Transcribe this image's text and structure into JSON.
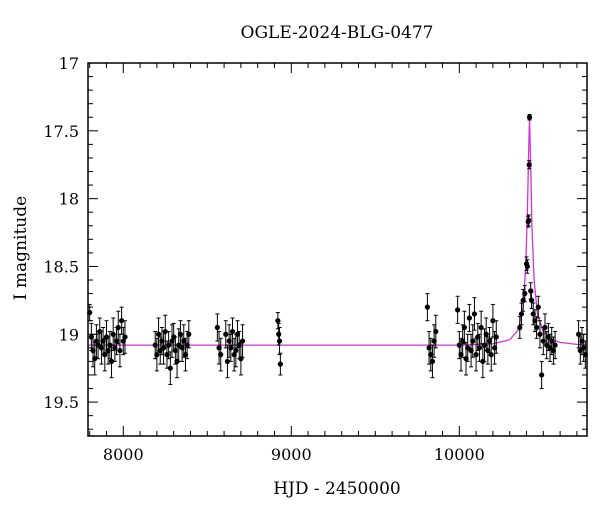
{
  "chart_data": {
    "type": "scatter",
    "title": "OGLE-2024-BLG-0477",
    "xlabel": "HJD - 2450000",
    "ylabel": "I magnitude",
    "xlim": [
      7790,
      10760
    ],
    "ylim": [
      19.75,
      17.0
    ],
    "y_inverted": true,
    "xticks": [
      8000,
      9000,
      10000
    ],
    "xtick_labels": [
      "8000",
      "9000",
      "10000"
    ],
    "yticks": [
      17,
      17.5,
      18,
      18.5,
      19,
      19.5
    ],
    "ytick_labels": [
      "17",
      "17.5",
      "18",
      "18.5",
      "19",
      "19.5"
    ],
    "grid": false,
    "colors": {
      "points": "#000000",
      "model": "#d633d6",
      "frame": "#000000"
    },
    "model": {
      "name": "model",
      "baseline": 19.08,
      "x": [
        7790,
        9000,
        10000,
        10200,
        10300,
        10350,
        10380,
        10395,
        10405,
        10412,
        10418,
        10425,
        10432,
        10445,
        10465,
        10500,
        10550,
        10600,
        10700,
        10760
      ],
      "y": [
        19.08,
        19.08,
        19.08,
        19.07,
        19.04,
        18.97,
        18.8,
        18.5,
        18.1,
        17.7,
        17.4,
        17.75,
        18.2,
        18.6,
        18.85,
        18.98,
        19.04,
        19.06,
        19.075,
        19.08
      ]
    },
    "series": [
      {
        "values": [
          {
            "x": 7800,
            "y": 18.84,
            "err": 0.06
          },
          {
            "x": 7810,
            "y": 19.02,
            "err": 0.1
          },
          {
            "x": 7820,
            "y": 19.12,
            "err": 0.12
          },
          {
            "x": 7830,
            "y": 19.18,
            "err": 0.12
          },
          {
            "x": 7840,
            "y": 19.05,
            "err": 0.12
          },
          {
            "x": 7850,
            "y": 19.08,
            "err": 0.1
          },
          {
            "x": 7860,
            "y": 18.98,
            "err": 0.1
          },
          {
            "x": 7870,
            "y": 19.1,
            "err": 0.12
          },
          {
            "x": 7880,
            "y": 19.05,
            "err": 0.1
          },
          {
            "x": 7890,
            "y": 19.15,
            "err": 0.12
          },
          {
            "x": 7900,
            "y": 19.02,
            "err": 0.12
          },
          {
            "x": 7910,
            "y": 19.12,
            "err": 0.1
          },
          {
            "x": 7920,
            "y": 19.08,
            "err": 0.1
          },
          {
            "x": 7930,
            "y": 19.2,
            "err": 0.12
          },
          {
            "x": 7940,
            "y": 19.0,
            "err": 0.12
          },
          {
            "x": 7950,
            "y": 19.1,
            "err": 0.1
          },
          {
            "x": 7960,
            "y": 19.05,
            "err": 0.1
          },
          {
            "x": 7970,
            "y": 18.95,
            "err": 0.12
          },
          {
            "x": 7980,
            "y": 19.12,
            "err": 0.12
          },
          {
            "x": 7990,
            "y": 18.9,
            "err": 0.1
          },
          {
            "x": 8000,
            "y": 19.05,
            "err": 0.1
          },
          {
            "x": 8010,
            "y": 19.02,
            "err": 0.12
          },
          {
            "x": 8190,
            "y": 19.08,
            "err": 0.1
          },
          {
            "x": 8200,
            "y": 19.15,
            "err": 0.12
          },
          {
            "x": 8210,
            "y": 19.0,
            "err": 0.12
          },
          {
            "x": 8220,
            "y": 19.12,
            "err": 0.1
          },
          {
            "x": 8230,
            "y": 19.05,
            "err": 0.1
          },
          {
            "x": 8240,
            "y": 19.1,
            "err": 0.12
          },
          {
            "x": 8250,
            "y": 18.98,
            "err": 0.12
          },
          {
            "x": 8260,
            "y": 19.15,
            "err": 0.1
          },
          {
            "x": 8270,
            "y": 19.08,
            "err": 0.1
          },
          {
            "x": 8280,
            "y": 19.25,
            "err": 0.12
          },
          {
            "x": 8290,
            "y": 19.05,
            "err": 0.12
          },
          {
            "x": 8300,
            "y": 19.02,
            "err": 0.1
          },
          {
            "x": 8310,
            "y": 19.12,
            "err": 0.1
          },
          {
            "x": 8320,
            "y": 19.2,
            "err": 0.12
          },
          {
            "x": 8330,
            "y": 19.08,
            "err": 0.12
          },
          {
            "x": 8340,
            "y": 19.0,
            "err": 0.1
          },
          {
            "x": 8350,
            "y": 19.1,
            "err": 0.1
          },
          {
            "x": 8360,
            "y": 19.05,
            "err": 0.12
          },
          {
            "x": 8370,
            "y": 19.15,
            "err": 0.12
          },
          {
            "x": 8380,
            "y": 19.08,
            "err": 0.1
          },
          {
            "x": 8390,
            "y": 19.0,
            "err": 0.1
          },
          {
            "x": 8560,
            "y": 18.95,
            "err": 0.1
          },
          {
            "x": 8570,
            "y": 19.1,
            "err": 0.12
          },
          {
            "x": 8580,
            "y": 19.15,
            "err": 0.12
          },
          {
            "x": 8610,
            "y": 19.0,
            "err": 0.1
          },
          {
            "x": 8620,
            "y": 19.2,
            "err": 0.12
          },
          {
            "x": 8630,
            "y": 19.05,
            "err": 0.12
          },
          {
            "x": 8640,
            "y": 19.1,
            "err": 0.1
          },
          {
            "x": 8650,
            "y": 18.98,
            "err": 0.1
          },
          {
            "x": 8660,
            "y": 19.15,
            "err": 0.12
          },
          {
            "x": 8670,
            "y": 19.12,
            "err": 0.12
          },
          {
            "x": 8680,
            "y": 19.0,
            "err": 0.1
          },
          {
            "x": 8690,
            "y": 19.08,
            "err": 0.1
          },
          {
            "x": 8700,
            "y": 19.18,
            "err": 0.12
          },
          {
            "x": 8710,
            "y": 19.05,
            "err": 0.12
          },
          {
            "x": 8920,
            "y": 18.9,
            "err": 0.06
          },
          {
            "x": 8925,
            "y": 19.0,
            "err": 0.08
          },
          {
            "x": 8930,
            "y": 19.05,
            "err": 0.1
          },
          {
            "x": 8935,
            "y": 19.22,
            "err": 0.08
          },
          {
            "x": 9810,
            "y": 18.8,
            "err": 0.1
          },
          {
            "x": 9820,
            "y": 19.1,
            "err": 0.12
          },
          {
            "x": 9830,
            "y": 19.15,
            "err": 0.12
          },
          {
            "x": 9840,
            "y": 19.2,
            "err": 0.12
          },
          {
            "x": 9850,
            "y": 19.05,
            "err": 0.12
          },
          {
            "x": 9860,
            "y": 18.98,
            "err": 0.12
          },
          {
            "x": 9990,
            "y": 18.82,
            "err": 0.1
          },
          {
            "x": 10000,
            "y": 19.08,
            "err": 0.1
          },
          {
            "x": 10010,
            "y": 19.15,
            "err": 0.12
          },
          {
            "x": 10020,
            "y": 19.05,
            "err": 0.12
          },
          {
            "x": 10030,
            "y": 18.95,
            "err": 0.12
          },
          {
            "x": 10040,
            "y": 19.18,
            "err": 0.12
          },
          {
            "x": 10050,
            "y": 19.1,
            "err": 0.1
          },
          {
            "x": 10060,
            "y": 18.88,
            "err": 0.1
          },
          {
            "x": 10070,
            "y": 19.12,
            "err": 0.12
          },
          {
            "x": 10080,
            "y": 19.05,
            "err": 0.12
          },
          {
            "x": 10090,
            "y": 18.85,
            "err": 0.12
          },
          {
            "x": 10100,
            "y": 19.15,
            "err": 0.12
          },
          {
            "x": 10110,
            "y": 19.02,
            "err": 0.1
          },
          {
            "x": 10120,
            "y": 19.1,
            "err": 0.1
          },
          {
            "x": 10130,
            "y": 18.95,
            "err": 0.12
          },
          {
            "x": 10140,
            "y": 19.2,
            "err": 0.12
          },
          {
            "x": 10150,
            "y": 19.08,
            "err": 0.12
          },
          {
            "x": 10160,
            "y": 19.0,
            "err": 0.12
          },
          {
            "x": 10170,
            "y": 19.12,
            "err": 0.1
          },
          {
            "x": 10180,
            "y": 19.05,
            "err": 0.1
          },
          {
            "x": 10190,
            "y": 19.15,
            "err": 0.12
          },
          {
            "x": 10200,
            "y": 18.9,
            "err": 0.12
          },
          {
            "x": 10210,
            "y": 19.1,
            "err": 0.12
          },
          {
            "x": 10220,
            "y": 19.02,
            "err": 0.12
          },
          {
            "x": 10360,
            "y": 18.95,
            "err": 0.08
          },
          {
            "x": 10370,
            "y": 18.85,
            "err": 0.08
          },
          {
            "x": 10380,
            "y": 18.75,
            "err": 0.08
          },
          {
            "x": 10390,
            "y": 18.7,
            "err": 0.06
          },
          {
            "x": 10400,
            "y": 18.48,
            "err": 0.05
          },
          {
            "x": 10405,
            "y": 18.5,
            "err": 0.05
          },
          {
            "x": 10410,
            "y": 18.17,
            "err": 0.04
          },
          {
            "x": 10413,
            "y": 18.16,
            "err": 0.04
          },
          {
            "x": 10416,
            "y": 17.75,
            "err": 0.03
          },
          {
            "x": 10418,
            "y": 17.4,
            "err": 0.02
          },
          {
            "x": 10425,
            "y": 18.68,
            "err": 0.06
          },
          {
            "x": 10430,
            "y": 18.75,
            "err": 0.06
          },
          {
            "x": 10440,
            "y": 18.85,
            "err": 0.08
          },
          {
            "x": 10450,
            "y": 18.9,
            "err": 0.08
          },
          {
            "x": 10460,
            "y": 18.95,
            "err": 0.08
          },
          {
            "x": 10470,
            "y": 18.8,
            "err": 0.08
          },
          {
            "x": 10480,
            "y": 19.0,
            "err": 0.1
          },
          {
            "x": 10490,
            "y": 19.3,
            "err": 0.1
          },
          {
            "x": 10500,
            "y": 19.05,
            "err": 0.1
          },
          {
            "x": 10510,
            "y": 18.95,
            "err": 0.1
          },
          {
            "x": 10520,
            "y": 19.08,
            "err": 0.1
          },
          {
            "x": 10530,
            "y": 19.02,
            "err": 0.1
          },
          {
            "x": 10540,
            "y": 19.1,
            "err": 0.1
          },
          {
            "x": 10550,
            "y": 19.05,
            "err": 0.1
          },
          {
            "x": 10560,
            "y": 19.12,
            "err": 0.1
          },
          {
            "x": 10570,
            "y": 19.08,
            "err": 0.1
          },
          {
            "x": 10710,
            "y": 19.0,
            "err": 0.1
          },
          {
            "x": 10720,
            "y": 19.12,
            "err": 0.1
          },
          {
            "x": 10730,
            "y": 19.05,
            "err": 0.1
          },
          {
            "x": 10740,
            "y": 19.1,
            "err": 0.1
          },
          {
            "x": 10750,
            "y": 19.15,
            "err": 0.1
          }
        ]
      }
    ]
  }
}
